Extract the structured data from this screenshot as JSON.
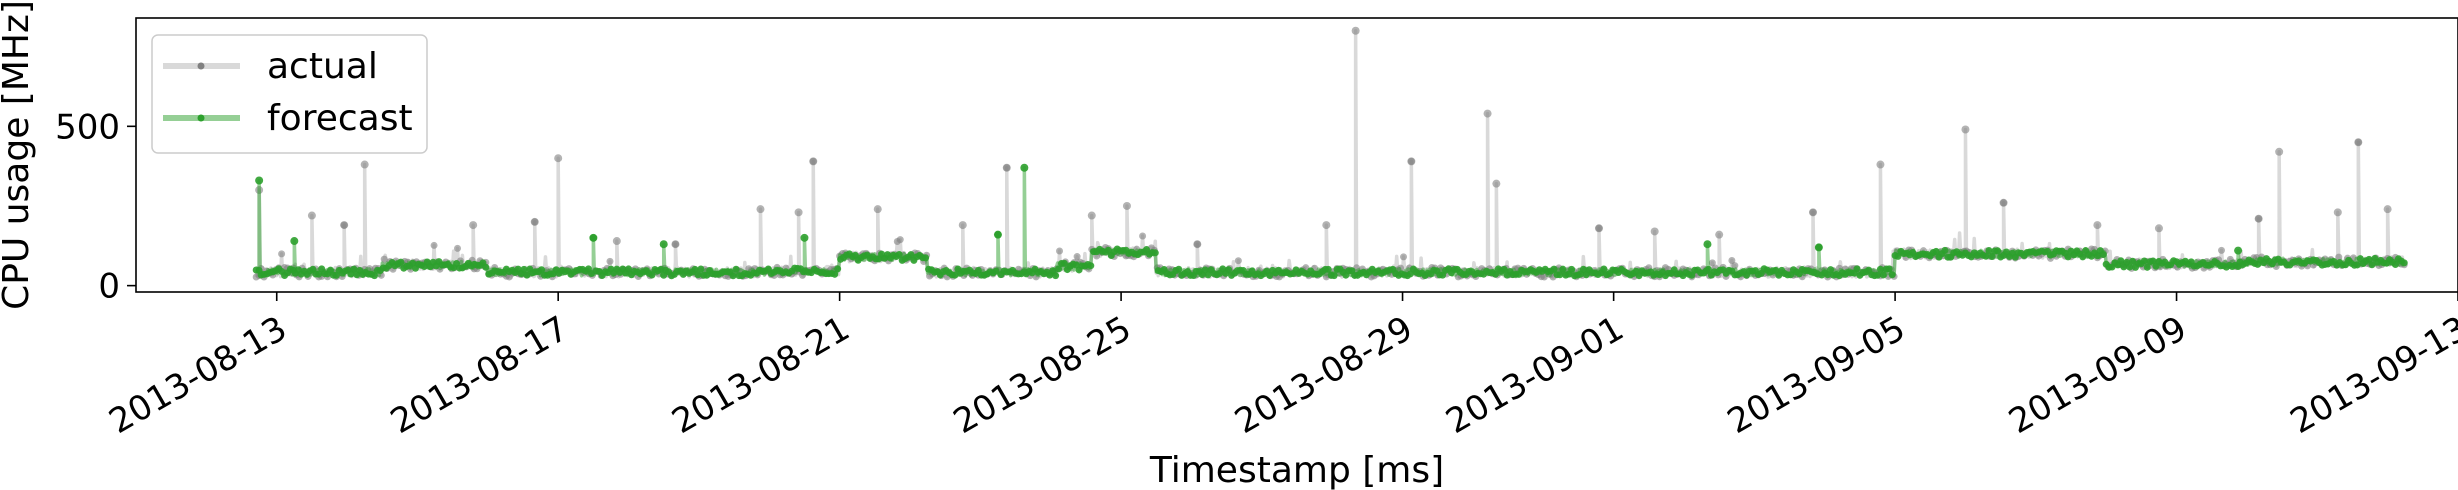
{
  "chart_data": {
    "type": "line",
    "title": "",
    "xlabel": "Timestamp [ms]",
    "ylabel": "CPU usage [MHz]",
    "x_range": [
      "2013-08-11T00:00",
      "2013-09-13T00:00"
    ],
    "ylim": [
      -20,
      840
    ],
    "x_ticks": [
      "2013-08-13",
      "2013-08-17",
      "2013-08-21",
      "2013-08-25",
      "2013-08-29",
      "2013-09-01",
      "2013-09-05",
      "2013-09-09",
      "2013-09-13"
    ],
    "y_ticks": [
      0,
      500
    ],
    "grid": false,
    "legend_position": "top-left",
    "series": [
      {
        "name": "actual",
        "color": "#808080",
        "spikes": [
          [
            "2013-08-12T18:00",
            300
          ],
          [
            "2013-08-13T12:00",
            220
          ],
          [
            "2013-08-13T23:00",
            190
          ],
          [
            "2013-08-14T06:00",
            380
          ],
          [
            "2013-08-15T19:00",
            190
          ],
          [
            "2013-08-16T16:00",
            200
          ],
          [
            "2013-08-17T00:00",
            400
          ],
          [
            "2013-08-17T20:00",
            140
          ],
          [
            "2013-08-18T16:00",
            130
          ],
          [
            "2013-08-19T21:00",
            240
          ],
          [
            "2013-08-20T10:00",
            230
          ],
          [
            "2013-08-20T15:00",
            390
          ],
          [
            "2013-08-21T13:00",
            240
          ],
          [
            "2013-08-22T18:00",
            190
          ],
          [
            "2013-08-23T09:00",
            370
          ],
          [
            "2013-08-24T14:00",
            220
          ],
          [
            "2013-08-25T02:00",
            250
          ],
          [
            "2013-08-26T02:00",
            130
          ],
          [
            "2013-08-27T22:00",
            190
          ],
          [
            "2013-08-28T08:00",
            800
          ],
          [
            "2013-08-29T03:00",
            390
          ],
          [
            "2013-08-30T05:00",
            540
          ],
          [
            "2013-08-30T08:00",
            320
          ],
          [
            "2013-08-31T19:00",
            180
          ],
          [
            "2013-09-01T14:00",
            170
          ],
          [
            "2013-09-02T12:00",
            160
          ],
          [
            "2013-09-03T20:00",
            230
          ],
          [
            "2013-09-04T19:00",
            380
          ],
          [
            "2013-09-06T00:00",
            490
          ],
          [
            "2013-09-06T13:00",
            260
          ],
          [
            "2013-09-07T21:00",
            190
          ],
          [
            "2013-09-08T18:00",
            180
          ],
          [
            "2013-09-10T04:00",
            210
          ],
          [
            "2013-09-10T11:00",
            420
          ],
          [
            "2013-09-11T07:00",
            230
          ],
          [
            "2013-09-11T14:00",
            450
          ],
          [
            "2013-09-12T00:00",
            240
          ]
        ]
      },
      {
        "name": "forecast",
        "color": "#2ca02c",
        "segments": [
          {
            "start": "2013-08-12T17:00",
            "end": "2013-08-14T12:00",
            "level": 42
          },
          {
            "start": "2013-08-14T12:00",
            "end": "2013-08-16T00:00",
            "level": 65
          },
          {
            "start": "2013-08-16T00:00",
            "end": "2013-08-20T00:00",
            "level": 42
          },
          {
            "start": "2013-08-20T00:00",
            "end": "2013-08-21T00:00",
            "level": 45
          },
          {
            "start": "2013-08-21T00:00",
            "end": "2013-08-22T06:00",
            "level": 90
          },
          {
            "start": "2013-08-22T06:00",
            "end": "2013-08-24T02:00",
            "level": 42
          },
          {
            "start": "2013-08-24T02:00",
            "end": "2013-08-24T14:00",
            "level": 60
          },
          {
            "start": "2013-08-24T14:00",
            "end": "2013-08-25T12:00",
            "level": 105
          },
          {
            "start": "2013-08-25T12:00",
            "end": "2013-09-05T00:00",
            "level": 42
          },
          {
            "start": "2013-09-05T00:00",
            "end": "2013-09-08T00:00",
            "level": 100
          },
          {
            "start": "2013-09-08T00:00",
            "end": "2013-09-10T00:00",
            "level": 68
          },
          {
            "start": "2013-09-10T00:00",
            "end": "2013-09-12T06:00",
            "level": 75
          }
        ],
        "spikes": [
          [
            "2013-08-12T18:00",
            330
          ],
          [
            "2013-08-13T06:00",
            140
          ],
          [
            "2013-08-17T12:00",
            150
          ],
          [
            "2013-08-18T12:00",
            130
          ],
          [
            "2013-08-20T12:00",
            150
          ],
          [
            "2013-08-23T06:00",
            160
          ],
          [
            "2013-08-23T15:00",
            370
          ],
          [
            "2013-09-02T08:00",
            130
          ],
          [
            "2013-09-03T22:00",
            120
          ],
          [
            "2013-09-09T21:00",
            110
          ]
        ]
      }
    ]
  }
}
